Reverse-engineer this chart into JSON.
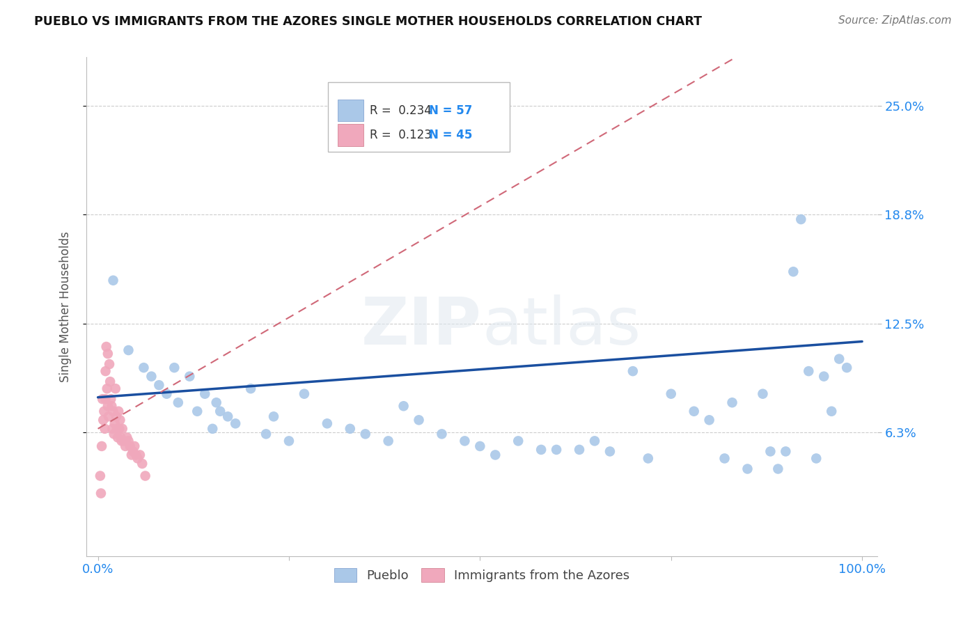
{
  "title": "PUEBLO VS IMMIGRANTS FROM THE AZORES SINGLE MOTHER HOUSEHOLDS CORRELATION CHART",
  "source": "Source: ZipAtlas.com",
  "ylabel": "Single Mother Households",
  "y_tick_labels": [
    "6.3%",
    "12.5%",
    "18.8%",
    "25.0%"
  ],
  "y_tick_values": [
    0.063,
    0.125,
    0.188,
    0.25
  ],
  "legend_r1": "R =  0.234",
  "legend_n1": "N = 57",
  "legend_r2": "R =  0.123",
  "legend_n2": "N = 45",
  "blue_color": "#aac8e8",
  "pink_color": "#f0a8bc",
  "trend_blue": "#1a4fa0",
  "trend_pink": "#d06878",
  "pueblo_x": [
    0.02,
    0.04,
    0.06,
    0.07,
    0.08,
    0.09,
    0.1,
    0.105,
    0.12,
    0.13,
    0.14,
    0.15,
    0.155,
    0.16,
    0.17,
    0.18,
    0.2,
    0.22,
    0.23,
    0.25,
    0.27,
    0.3,
    0.33,
    0.35,
    0.38,
    0.4,
    0.42,
    0.45,
    0.48,
    0.5,
    0.52,
    0.55,
    0.58,
    0.6,
    0.63,
    0.65,
    0.67,
    0.7,
    0.72,
    0.75,
    0.78,
    0.8,
    0.82,
    0.83,
    0.85,
    0.87,
    0.88,
    0.89,
    0.9,
    0.91,
    0.92,
    0.93,
    0.94,
    0.95,
    0.96,
    0.97,
    0.98
  ],
  "pueblo_y": [
    0.15,
    0.11,
    0.1,
    0.095,
    0.09,
    0.085,
    0.1,
    0.08,
    0.095,
    0.075,
    0.085,
    0.065,
    0.08,
    0.075,
    0.072,
    0.068,
    0.088,
    0.062,
    0.072,
    0.058,
    0.085,
    0.068,
    0.065,
    0.062,
    0.058,
    0.078,
    0.07,
    0.062,
    0.058,
    0.055,
    0.05,
    0.058,
    0.053,
    0.053,
    0.053,
    0.058,
    0.052,
    0.098,
    0.048,
    0.085,
    0.075,
    0.07,
    0.048,
    0.08,
    0.042,
    0.085,
    0.052,
    0.042,
    0.052,
    0.155,
    0.185,
    0.098,
    0.048,
    0.095,
    0.075,
    0.105,
    0.1
  ],
  "azores_x": [
    0.003,
    0.004,
    0.005,
    0.006,
    0.007,
    0.008,
    0.009,
    0.01,
    0.01,
    0.011,
    0.012,
    0.013,
    0.013,
    0.014,
    0.015,
    0.016,
    0.017,
    0.018,
    0.019,
    0.02,
    0.021,
    0.022,
    0.023,
    0.024,
    0.025,
    0.026,
    0.027,
    0.028,
    0.029,
    0.03,
    0.031,
    0.032,
    0.034,
    0.036,
    0.038,
    0.04,
    0.042,
    0.044,
    0.046,
    0.048,
    0.05,
    0.052,
    0.055,
    0.058,
    0.062
  ],
  "azores_y": [
    0.038,
    0.028,
    0.055,
    0.082,
    0.07,
    0.075,
    0.065,
    0.098,
    0.082,
    0.112,
    0.088,
    0.078,
    0.108,
    0.072,
    0.102,
    0.092,
    0.082,
    0.078,
    0.065,
    0.075,
    0.062,
    0.068,
    0.088,
    0.072,
    0.065,
    0.06,
    0.075,
    0.065,
    0.07,
    0.06,
    0.058,
    0.065,
    0.058,
    0.055,
    0.06,
    0.058,
    0.055,
    0.05,
    0.052,
    0.055,
    0.05,
    0.048,
    0.05,
    0.045,
    0.038
  ]
}
